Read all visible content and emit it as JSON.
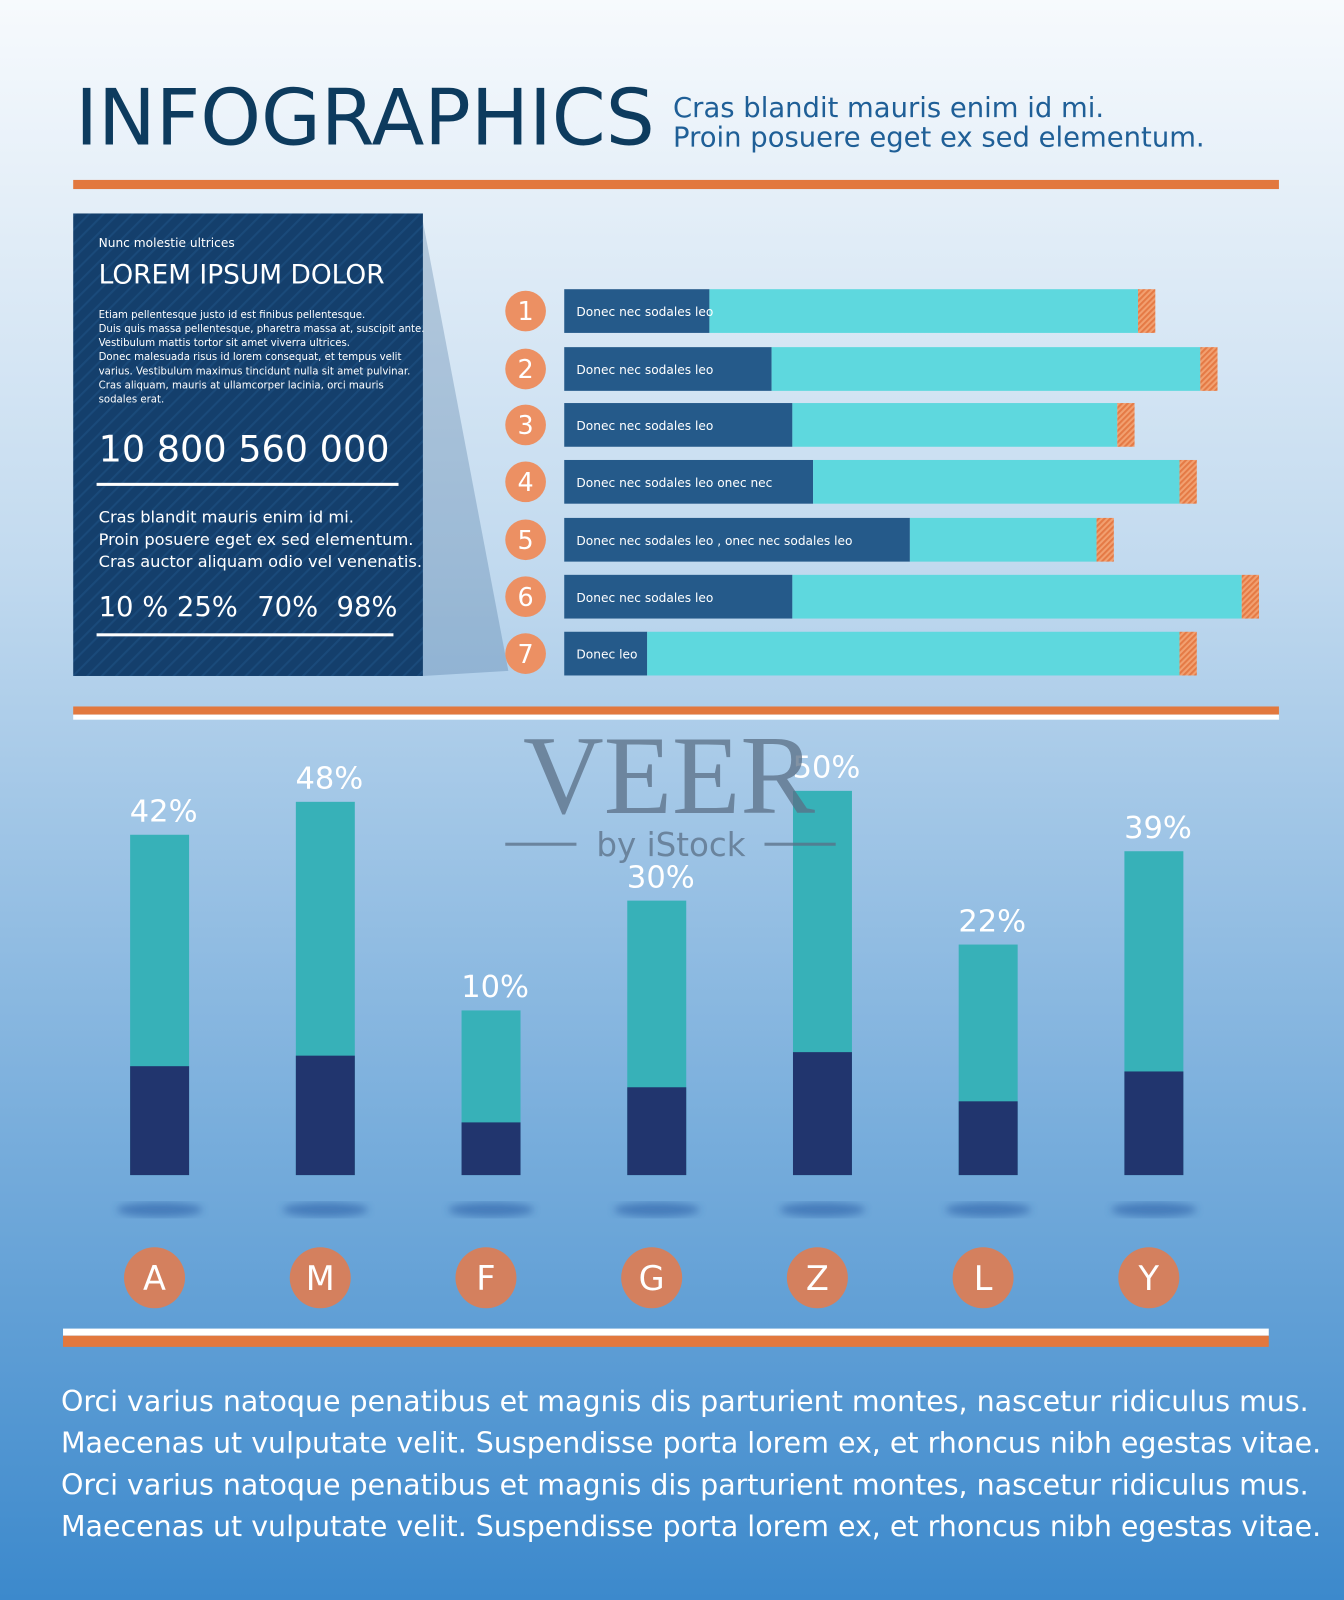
{
  "header": {
    "title": "INFOGRAPHICS",
    "subtitle": [
      "Cras blandit mauris enim id mi.",
      "Proin posuere eget ex sed elementum."
    ]
  },
  "panel": {
    "kicker": "Nunc molestie ultrices",
    "heading": "LOREM IPSUM DOLOR",
    "body": [
      "Etiam pellentesque justo id est finibus pellentesque.",
      "Duis quis massa pellentesque, pharetra massa at, suscipit ante.",
      "Vestibulum mattis tortor sit amet viverra ultrices.",
      "Donec malesuada risus id lorem consequat, et tempus velit",
      "varius. Vestibulum maximus tincidunt nulla sit amet pulvinar.",
      "Cras aliquam, mauris at ullamcorper lacinia, orci mauris",
      "sodales erat."
    ],
    "number": "10 800 560 000",
    "text": [
      "Cras blandit mauris enim id mi.",
      "Proin posuere eget ex sed elementum.",
      "Cras auctor aliquam odio vel venenatis."
    ],
    "percents": [
      "10 %",
      "25%",
      "70%",
      "98%"
    ]
  },
  "watermark": [
    "VEER",
    "by iStock"
  ],
  "chart_data": [
    {
      "type": "barh",
      "categories": [
        "Donec nec sodales leo",
        "Donec nec sodales leo",
        "Donec nec sodales leo",
        "Donec nec sodales leo  onec nec",
        "Donec nec sodales leo ,  onec nec sodales leo",
        "Donec nec sodales leo",
        "Donec  leo"
      ],
      "rank_labels": [
        1,
        2,
        3,
        4,
        5,
        6,
        7
      ],
      "series": [
        {
          "color": "#255a8a",
          "values": [
            21,
            30,
            33,
            36,
            50,
            33,
            12
          ]
        },
        {
          "color": "#5ed8de",
          "values": [
            62,
            62,
            47,
            53,
            27,
            65,
            77
          ]
        }
      ],
      "xlim": [
        0,
        100
      ]
    },
    {
      "type": "bar",
      "categories": [
        "A",
        "M",
        "F",
        "G",
        "Z",
        "L",
        "Y"
      ],
      "values": [
        42,
        48,
        10,
        30,
        50,
        22,
        39
      ],
      "value_labels": [
        "42%",
        "48%",
        "10%",
        "30%",
        "50%",
        "22%",
        "39%"
      ],
      "color": "#37b1b8",
      "ylim": [
        -20,
        55
      ]
    }
  ],
  "footer": [
    "Orci varius natoque penatibus et magnis dis parturient montes, nascetur ridiculus mus.",
    "Maecenas ut vulputate velit. Suspendisse porta lorem ex, et rhoncus nibh egestas vitae.",
    "Orci varius natoque penatibus et magnis dis parturient montes, nascetur ridiculus mus.",
    "Maecenas ut vulputate velit. Suspendisse porta lorem ex, et rhoncus nibh egestas vitae."
  ]
}
